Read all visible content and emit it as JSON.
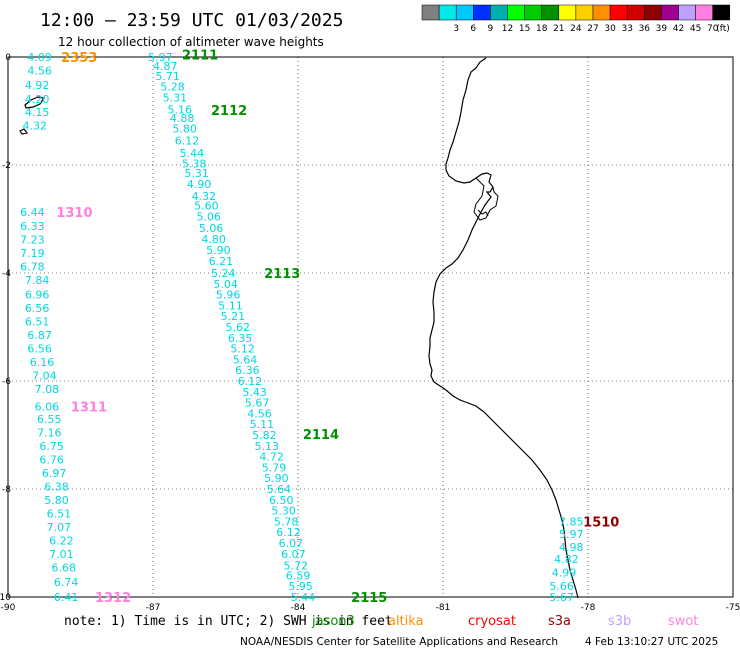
{
  "header": {
    "title": "12:00 — 23:59 UTC 01/03/2025",
    "subtitle": "12 hour collection of altimeter wave heights"
  },
  "colorbar": {
    "unit": "(ft)",
    "bins": [
      {
        "label": "",
        "color": "#808080"
      },
      {
        "label": "3",
        "color": "#00e8e8"
      },
      {
        "label": "6",
        "color": "#00c8ff"
      },
      {
        "label": "9",
        "color": "#0030ff"
      },
      {
        "label": "12",
        "color": "#00b0b0"
      },
      {
        "label": "15",
        "color": "#00ff00"
      },
      {
        "label": "18",
        "color": "#00cc00"
      },
      {
        "label": "21",
        "color": "#009000"
      },
      {
        "label": "24",
        "color": "#ffff00"
      },
      {
        "label": "27",
        "color": "#ffd000"
      },
      {
        "label": "30",
        "color": "#ff9000"
      },
      {
        "label": "33",
        "color": "#ff0000"
      },
      {
        "label": "36",
        "color": "#d00000"
      },
      {
        "label": "39",
        "color": "#900000"
      },
      {
        "label": "42",
        "color": "#a00090"
      },
      {
        "label": "45",
        "color": "#c0a0ff"
      },
      {
        "label": "70",
        "color": "#ff80e0"
      },
      {
        "label": "",
        "color": "#000000"
      }
    ]
  },
  "map": {
    "x_ticks": [
      "-90",
      "-87",
      "-84",
      "-81",
      "-78",
      "-75"
    ],
    "y_ticks": [
      "0",
      "-2",
      "-4",
      "-6",
      "-8",
      "-10"
    ],
    "lon_range": [
      -90,
      -75
    ],
    "lat_range": [
      -10,
      0
    ]
  },
  "tracks": [
    {
      "label": "2353",
      "color": "#ff9000",
      "label_pos": [
        -88.9,
        0.0
      ]
    },
    {
      "label": "2111",
      "color": "#009000",
      "label_pos": [
        -86.4,
        0.05
      ]
    },
    {
      "label": "2112",
      "color": "#009000",
      "label_pos": [
        -85.8,
        -0.98
      ]
    },
    {
      "label": "1310",
      "color": "#ff80e0",
      "label_pos": [
        -89.0,
        -2.87
      ]
    },
    {
      "label": "2113",
      "color": "#009000",
      "label_pos": [
        -84.7,
        -4.0
      ]
    },
    {
      "label": "1311",
      "color": "#ff80e0",
      "label_pos": [
        -88.7,
        -6.47
      ]
    },
    {
      "label": "2114",
      "color": "#009000",
      "label_pos": [
        -83.9,
        -6.98
      ]
    },
    {
      "label": "1510",
      "color": "#900000",
      "label_pos": [
        -78.1,
        -8.6
      ]
    },
    {
      "label": "2115",
      "color": "#009000",
      "label_pos": [
        -82.9,
        -10.0
      ]
    },
    {
      "label": "1312",
      "color": "#ff80e0",
      "label_pos": [
        -88.2,
        -10.0
      ]
    }
  ],
  "wave_heights": [
    {
      "lon": -89.6,
      "lat": 0.0,
      "value": "4.09"
    },
    {
      "lon": -89.6,
      "lat": -0.25,
      "value": "4.56"
    },
    {
      "lon": -89.65,
      "lat": -0.52,
      "value": "4.92"
    },
    {
      "lon": -89.65,
      "lat": -0.78,
      "value": "4.20"
    },
    {
      "lon": -89.65,
      "lat": -1.02,
      "value": "4.15"
    },
    {
      "lon": -89.7,
      "lat": -1.27,
      "value": "4.32"
    },
    {
      "lon": -87.1,
      "lat": 0.0,
      "value": "5.97"
    },
    {
      "lon": -87.0,
      "lat": -0.17,
      "value": "4.87"
    },
    {
      "lon": -86.95,
      "lat": -0.35,
      "value": "5.71"
    },
    {
      "lon": -86.85,
      "lat": -0.55,
      "value": "5.28"
    },
    {
      "lon": -86.8,
      "lat": -0.75,
      "value": "5.31"
    },
    {
      "lon": -86.7,
      "lat": -0.97,
      "value": "5.16"
    },
    {
      "lon": -86.65,
      "lat": -1.13,
      "value": "4.88"
    },
    {
      "lon": -86.6,
      "lat": -1.32,
      "value": "5.80"
    },
    {
      "lon": -86.55,
      "lat": -1.55,
      "value": "6.12"
    },
    {
      "lon": -86.45,
      "lat": -1.78,
      "value": "5.44"
    },
    {
      "lon": -86.4,
      "lat": -1.97,
      "value": "5.38"
    },
    {
      "lon": -86.35,
      "lat": -2.15,
      "value": "5.31"
    },
    {
      "lon": -86.3,
      "lat": -2.35,
      "value": "4.90"
    },
    {
      "lon": -86.2,
      "lat": -2.57,
      "value": "4.32"
    },
    {
      "lon": -86.15,
      "lat": -2.75,
      "value": "5.60"
    },
    {
      "lon": -86.1,
      "lat": -2.95,
      "value": "5.06"
    },
    {
      "lon": -86.05,
      "lat": -3.17,
      "value": "5.06"
    },
    {
      "lon": -86.0,
      "lat": -3.37,
      "value": "4.80"
    },
    {
      "lon": -85.9,
      "lat": -3.57,
      "value": "5.90"
    },
    {
      "lon": -85.85,
      "lat": -3.78,
      "value": "6.21"
    },
    {
      "lon": -85.8,
      "lat": -4.0,
      "value": "5.24"
    },
    {
      "lon": -85.75,
      "lat": -4.2,
      "value": "5.04"
    },
    {
      "lon": -85.7,
      "lat": -4.4,
      "value": "5.96"
    },
    {
      "lon": -85.65,
      "lat": -4.6,
      "value": "5.11"
    },
    {
      "lon": -85.6,
      "lat": -4.8,
      "value": "5.21"
    },
    {
      "lon": -85.5,
      "lat": -5.0,
      "value": "5.62"
    },
    {
      "lon": -85.45,
      "lat": -5.2,
      "value": "6.35"
    },
    {
      "lon": -85.4,
      "lat": -5.4,
      "value": "5.12"
    },
    {
      "lon": -85.35,
      "lat": -5.6,
      "value": "5.64"
    },
    {
      "lon": -85.3,
      "lat": -5.8,
      "value": "6.36"
    },
    {
      "lon": -85.25,
      "lat": -6.0,
      "value": "6.12"
    },
    {
      "lon": -85.15,
      "lat": -6.2,
      "value": "5.43"
    },
    {
      "lon": -85.1,
      "lat": -6.4,
      "value": "5.67"
    },
    {
      "lon": -85.05,
      "lat": -6.6,
      "value": "4.56"
    },
    {
      "lon": -85.0,
      "lat": -6.8,
      "value": "5.11"
    },
    {
      "lon": -84.95,
      "lat": -7.0,
      "value": "5.82"
    },
    {
      "lon": -84.9,
      "lat": -7.2,
      "value": "5.13"
    },
    {
      "lon": -84.8,
      "lat": -7.4,
      "value": "4.72"
    },
    {
      "lon": -84.75,
      "lat": -7.6,
      "value": "5.79"
    },
    {
      "lon": -84.7,
      "lat": -7.8,
      "value": "5.90"
    },
    {
      "lon": -84.65,
      "lat": -8.0,
      "value": "5.64"
    },
    {
      "lon": -84.6,
      "lat": -8.2,
      "value": "6.50"
    },
    {
      "lon": -84.55,
      "lat": -8.4,
      "value": "5.30"
    },
    {
      "lon": -84.5,
      "lat": -8.6,
      "value": "5.78"
    },
    {
      "lon": -84.45,
      "lat": -8.8,
      "value": "6.12"
    },
    {
      "lon": -84.4,
      "lat": -9.0,
      "value": "6.07"
    },
    {
      "lon": -84.35,
      "lat": -9.2,
      "value": "6.07"
    },
    {
      "lon": -84.3,
      "lat": -9.42,
      "value": "5.72"
    },
    {
      "lon": -84.25,
      "lat": -9.6,
      "value": "6.59"
    },
    {
      "lon": -84.2,
      "lat": -9.8,
      "value": "5.95"
    },
    {
      "lon": -84.15,
      "lat": -10.0,
      "value": "5.44"
    },
    {
      "lon": -89.75,
      "lat": -2.87,
      "value": "6.44"
    },
    {
      "lon": -89.75,
      "lat": -3.13,
      "value": "6.33"
    },
    {
      "lon": -89.75,
      "lat": -3.38,
      "value": "7.23"
    },
    {
      "lon": -89.75,
      "lat": -3.63,
      "value": "7.19"
    },
    {
      "lon": -89.75,
      "lat": -3.88,
      "value": "6.78"
    },
    {
      "lon": -89.65,
      "lat": -4.13,
      "value": "7.84"
    },
    {
      "lon": -89.65,
      "lat": -4.4,
      "value": "6.96"
    },
    {
      "lon": -89.65,
      "lat": -4.65,
      "value": "6.56"
    },
    {
      "lon": -89.65,
      "lat": -4.9,
      "value": "6.51"
    },
    {
      "lon": -89.6,
      "lat": -5.15,
      "value": "6.87"
    },
    {
      "lon": -89.6,
      "lat": -5.4,
      "value": "6.56"
    },
    {
      "lon": -89.55,
      "lat": -5.65,
      "value": "6.16"
    },
    {
      "lon": -89.5,
      "lat": -5.9,
      "value": "7.04"
    },
    {
      "lon": -89.45,
      "lat": -6.15,
      "value": "7.08"
    },
    {
      "lon": -89.45,
      "lat": -6.47,
      "value": "6.06"
    },
    {
      "lon": -89.4,
      "lat": -6.7,
      "value": "6.55"
    },
    {
      "lon": -89.4,
      "lat": -6.95,
      "value": "7.16"
    },
    {
      "lon": -89.35,
      "lat": -7.2,
      "value": "6.75"
    },
    {
      "lon": -89.35,
      "lat": -7.45,
      "value": "6.76"
    },
    {
      "lon": -89.3,
      "lat": -7.7,
      "value": "6.97"
    },
    {
      "lon": -89.25,
      "lat": -7.95,
      "value": "6.38"
    },
    {
      "lon": -89.25,
      "lat": -8.2,
      "value": "5.80"
    },
    {
      "lon": -89.2,
      "lat": -8.45,
      "value": "6.51"
    },
    {
      "lon": -89.2,
      "lat": -8.7,
      "value": "7.07"
    },
    {
      "lon": -89.15,
      "lat": -8.95,
      "value": "6.22"
    },
    {
      "lon": -89.15,
      "lat": -9.2,
      "value": "7.01"
    },
    {
      "lon": -89.1,
      "lat": -9.45,
      "value": "6.68"
    },
    {
      "lon": -89.05,
      "lat": -9.72,
      "value": "6.74"
    },
    {
      "lon": -89.05,
      "lat": -10.0,
      "value": "6.41"
    },
    {
      "lon": -78.6,
      "lat": -8.6,
      "value": "7.85"
    },
    {
      "lon": -78.6,
      "lat": -8.83,
      "value": "5.97"
    },
    {
      "lon": -78.6,
      "lat": -9.07,
      "value": "4.98"
    },
    {
      "lon": -78.7,
      "lat": -9.3,
      "value": "4.82"
    },
    {
      "lon": -78.75,
      "lat": -9.55,
      "value": "4.99"
    },
    {
      "lon": -78.8,
      "lat": -9.8,
      "value": "5.66"
    },
    {
      "lon": -78.8,
      "lat": -10.0,
      "value": "5.67"
    }
  ],
  "footer": {
    "note": "note: 1) Time is in UTC; 2) SWH is in feet",
    "satellites": [
      {
        "name": "jason3",
        "color": "#009000"
      },
      {
        "name": "altika",
        "color": "#ff9000"
      },
      {
        "name": "cryosat",
        "color": "#ff0000"
      },
      {
        "name": "s3a",
        "color": "#900000"
      },
      {
        "name": "s3b",
        "color": "#c0a0ff"
      },
      {
        "name": "swot",
        "color": "#ff80e0"
      }
    ],
    "credit": "NOAA/NESDIS Center for Satellite Applications and Research",
    "timestamp": "4 Feb 13:10:27 UTC 2025"
  },
  "colors": {
    "wave_text": "#00d8e0",
    "grid": "#000000",
    "coast": "#000000"
  }
}
